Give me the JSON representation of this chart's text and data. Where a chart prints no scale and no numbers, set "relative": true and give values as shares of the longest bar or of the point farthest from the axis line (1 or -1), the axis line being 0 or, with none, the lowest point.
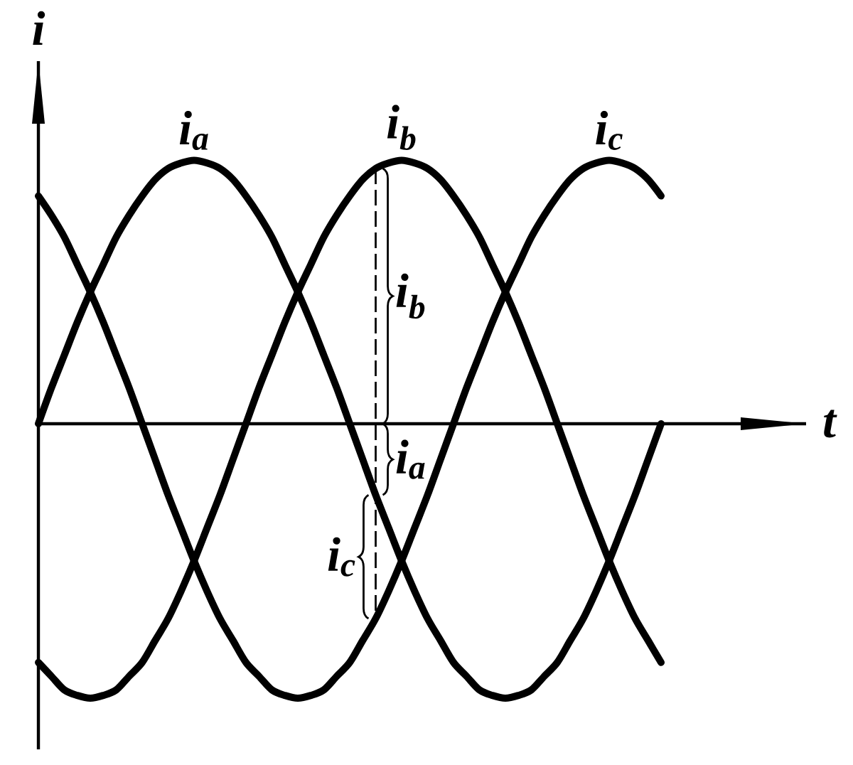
{
  "chart_data": {
    "type": "line",
    "relative": true,
    "xlabel": "t",
    "ylabel": "i",
    "categories": [
      null,
      null,
      null,
      null,
      null,
      null,
      null,
      null,
      null,
      null,
      null,
      null,
      null,
      null,
      null,
      null,
      null,
      null,
      null,
      null,
      null,
      null,
      null,
      null,
      null,
      null,
      null,
      null,
      null,
      null,
      null,
      null,
      null,
      null,
      null,
      null,
      null,
      null,
      null,
      null,
      null,
      null,
      null,
      null,
      null,
      null,
      null,
      null,
      null
    ],
    "series": [
      {
        "name": "i$_{a}$",
        "color": "#000000",
        "values": [
          0,
          0.13,
          0.25,
          0.37,
          0.48,
          0.58,
          0.68,
          0.76,
          0.83,
          0.89,
          0.93,
          0.95,
          0.96,
          0.95,
          0.93,
          0.89,
          0.83,
          0.76,
          0.68,
          0.58,
          0.48,
          0.37,
          0.25,
          0.13,
          0,
          -0.13,
          -0.26,
          -0.38,
          -0.5,
          -0.61,
          -0.71,
          -0.79,
          -0.87,
          -0.92,
          -0.97,
          -0.99,
          -1,
          -0.99,
          -0.97,
          -0.92,
          -0.87,
          -0.79,
          -0.71,
          -0.61,
          -0.5,
          -0.38,
          -0.26,
          -0.13,
          0
        ]
      },
      {
        "name": "i$_{b}$",
        "color": "#000000",
        "values": [
          -0.87,
          -0.92,
          -0.97,
          -0.99,
          -1,
          -0.99,
          -0.97,
          -0.92,
          -0.87,
          -0.79,
          -0.71,
          -0.61,
          -0.5,
          -0.38,
          -0.26,
          -0.13,
          0,
          0.13,
          0.25,
          0.37,
          0.48,
          0.58,
          0.68,
          0.76,
          0.83,
          0.89,
          0.93,
          0.95,
          0.96,
          0.95,
          0.93,
          0.89,
          0.83,
          0.76,
          0.68,
          0.58,
          0.48,
          0.37,
          0.25,
          0.13,
          0,
          -0.13,
          -0.26,
          -0.38,
          -0.5,
          -0.61,
          -0.71,
          -0.79,
          -0.87
        ]
      },
      {
        "name": "i$_{c}$",
        "color": "#000000",
        "values": [
          0.83,
          0.76,
          0.68,
          0.58,
          0.48,
          0.37,
          0.25,
          0.13,
          0,
          -0.13,
          -0.26,
          -0.38,
          -0.5,
          -0.61,
          -0.71,
          -0.79,
          -0.87,
          -0.92,
          -0.97,
          -0.99,
          -1,
          -0.99,
          -0.97,
          -0.92,
          -0.87,
          -0.79,
          -0.71,
          -0.61,
          -0.5,
          -0.38,
          -0.26,
          -0.13,
          0,
          0.13,
          0.25,
          0.37,
          0.48,
          0.58,
          0.68,
          0.76,
          0.83,
          0.89,
          0.93,
          0.95,
          0.96,
          0.95,
          0.93,
          0.89,
          0.83
        ]
      }
    ],
    "annotations": [
      "i$_{a}$",
      "i$_{b}$",
      "i$_{c}$"
    ]
  }
}
